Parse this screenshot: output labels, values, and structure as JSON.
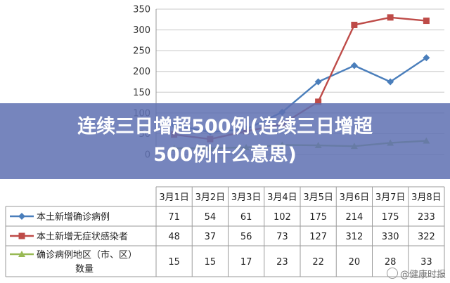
{
  "banner": {
    "line1": "连续三日增超500例(连续三日增超",
    "line2": "500例什么意思)"
  },
  "watermark": "@健康时报",
  "chart_data": {
    "type": "line",
    "categories": [
      "3月1日",
      "3月2日",
      "3月3日",
      "3月4日",
      "3月5日",
      "3月6日",
      "3月7日",
      "3月8日"
    ],
    "ylim": [
      0,
      350
    ],
    "yticks": [
      "0",
      "50",
      "100",
      "150",
      "200",
      "250",
      "300",
      "350"
    ],
    "grid": true,
    "legend": "table-left",
    "series": [
      {
        "name": "本土新增确诊病例",
        "values": [
          71,
          54,
          61,
          102,
          175,
          214,
          175,
          233
        ],
        "color": "#4a7ebb",
        "marker": "diamond"
      },
      {
        "name": "本土新增无症状感染者",
        "values": [
          48,
          37,
          56,
          73,
          127,
          312,
          330,
          322
        ],
        "color": "#be4b48",
        "marker": "square"
      },
      {
        "name": "确诊病例地区（市、区）数量",
        "values": [
          15,
          15,
          17,
          23,
          22,
          20,
          28,
          33
        ],
        "color": "#98b954",
        "marker": "triangle"
      }
    ]
  }
}
